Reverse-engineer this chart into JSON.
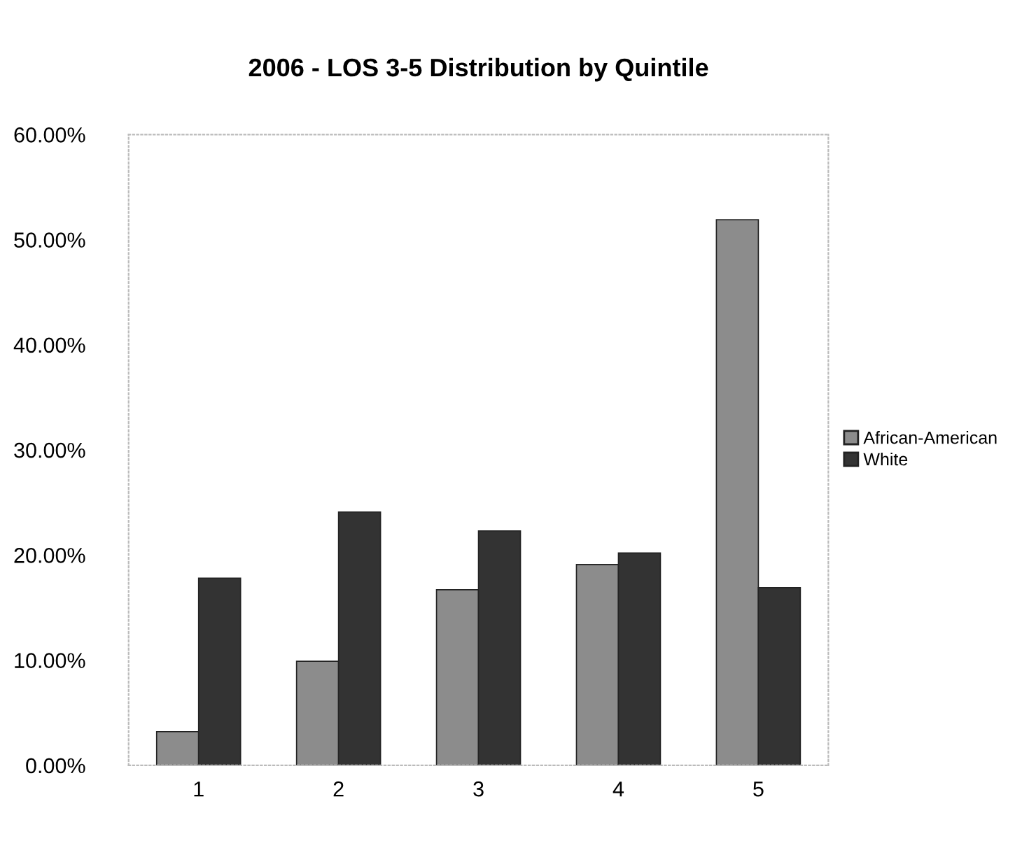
{
  "chart_data": {
    "type": "bar",
    "title": "2006 - LOS 3-5 Distribution by Quintile",
    "categories": [
      "1",
      "2",
      "3",
      "4",
      "5"
    ],
    "series": [
      {
        "name": "African-American",
        "color": "#8c8c8c",
        "values": [
          3.2,
          9.9,
          16.7,
          19.1,
          51.9
        ]
      },
      {
        "name": "White",
        "color": "#333333",
        "values": [
          17.8,
          24.1,
          22.3,
          20.2,
          16.9
        ]
      }
    ],
    "ylim": [
      0,
      60
    ],
    "yticks": [
      {
        "value": 0,
        "label": "0.00%"
      },
      {
        "value": 10,
        "label": "10.00%"
      },
      {
        "value": 20,
        "label": "20.00%"
      },
      {
        "value": 30,
        "label": "30.00%"
      },
      {
        "value": 40,
        "label": "40.00%"
      },
      {
        "value": 50,
        "label": "50.00%"
      },
      {
        "value": 60,
        "label": "60.00%"
      }
    ],
    "grid": false,
    "legend": "right"
  }
}
